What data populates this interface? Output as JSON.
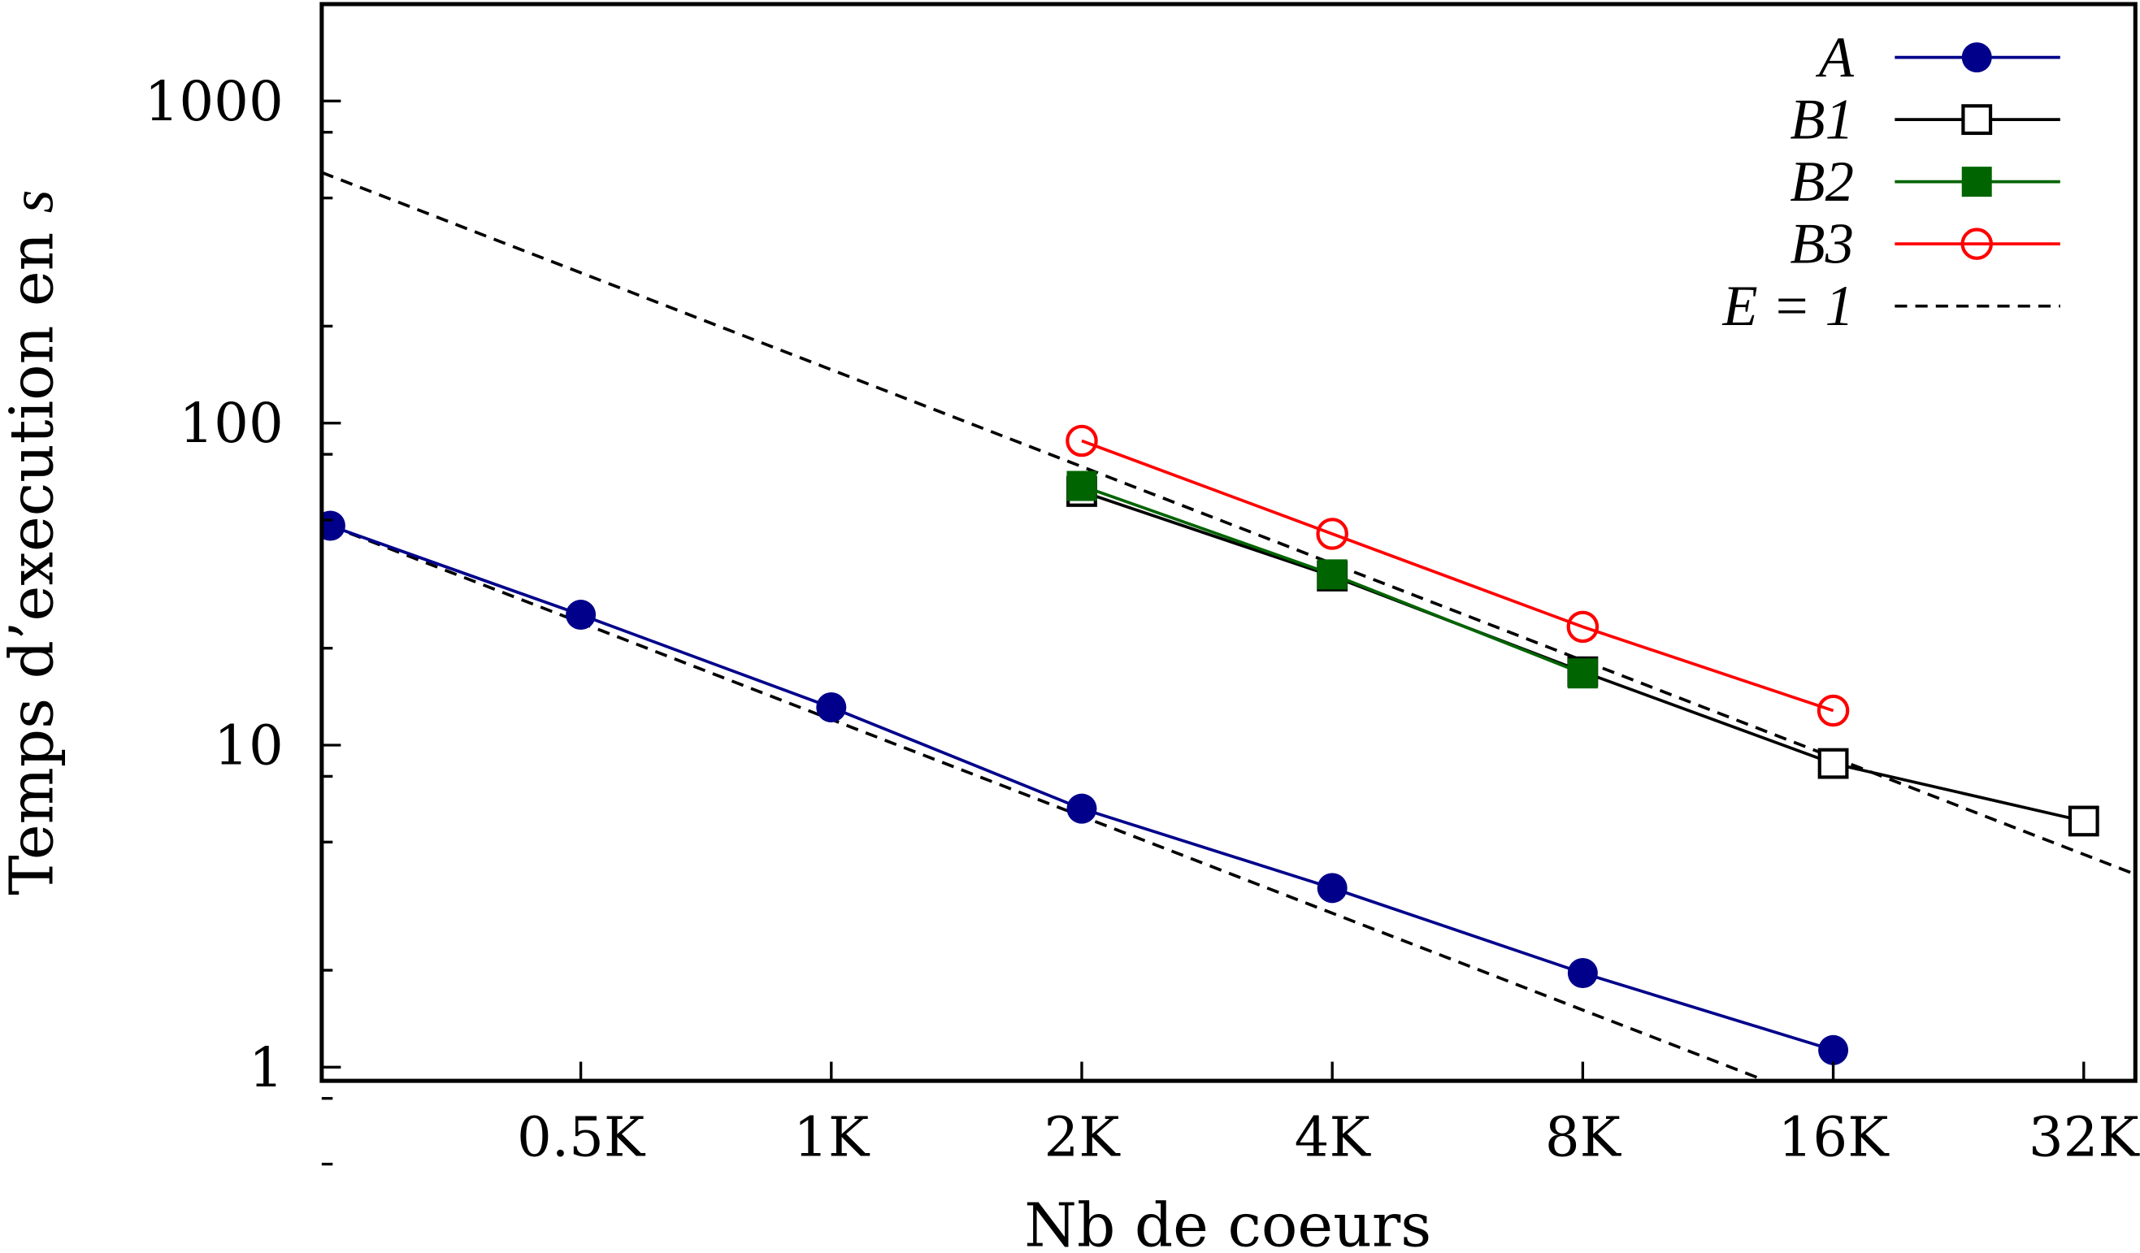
{
  "chart_data": {
    "type": "line",
    "xlabel": "Nb de coeurs",
    "ylabel": "Temps d’execution en ",
    "ylabel_var": "s",
    "xscale": "log2",
    "yscale": "log10",
    "xlim": [
      250,
      37800
    ],
    "ylim": [
      0.907,
      2000
    ],
    "grid": false,
    "legend_position": "top-right",
    "x_ticks": [
      {
        "value": 512,
        "label": "0.5K"
      },
      {
        "value": 1024,
        "label": "1K"
      },
      {
        "value": 2048,
        "label": "2K"
      },
      {
        "value": 4096,
        "label": "4K"
      },
      {
        "value": 8192,
        "label": "8K"
      },
      {
        "value": 16384,
        "label": "16K"
      },
      {
        "value": 32768,
        "label": "32K"
      }
    ],
    "y_ticks": [
      {
        "value": 1,
        "label": "1"
      },
      {
        "value": 10,
        "label": "10"
      },
      {
        "value": 100,
        "label": "100"
      },
      {
        "value": 1000,
        "label": "1000"
      }
    ],
    "series": [
      {
        "name": "A",
        "color": "#00008b",
        "marker": "filled-circle",
        "x": [
          256,
          512,
          1024,
          2048,
          4096,
          8192,
          16384
        ],
        "y": [
          48,
          25.4,
          13.1,
          6.35,
          3.6,
          1.96,
          1.13
        ]
      },
      {
        "name": "B1",
        "color": "#000000",
        "marker": "open-square",
        "x": [
          2048,
          4096,
          8192,
          16384,
          32768
        ],
        "y": [
          61.3,
          33.5,
          16.9,
          8.77,
          5.81
        ]
      },
      {
        "name": "B2",
        "color": "#006400",
        "marker": "filled-square",
        "x": [
          2048,
          4096,
          8192
        ],
        "y": [
          63.8,
          33.9,
          16.7
        ]
      },
      {
        "name": "B3",
        "color": "#ff0000",
        "marker": "open-circle",
        "x": [
          2048,
          4096,
          8192,
          16384
        ],
        "y": [
          88.1,
          45.3,
          23.3,
          12.8
        ]
      }
    ],
    "reference_lines": [
      {
        "name": "E = 1",
        "legend": true,
        "color": "#000000",
        "style": "dashed",
        "x": [
          250,
          37800
        ],
        "y": [
          600,
          3.97
        ]
      },
      {
        "name": "E = 1",
        "legend": false,
        "color": "#000000",
        "style": "dashed",
        "x": [
          256,
          13600
        ],
        "y": [
          48,
          0.907
        ]
      }
    ]
  }
}
